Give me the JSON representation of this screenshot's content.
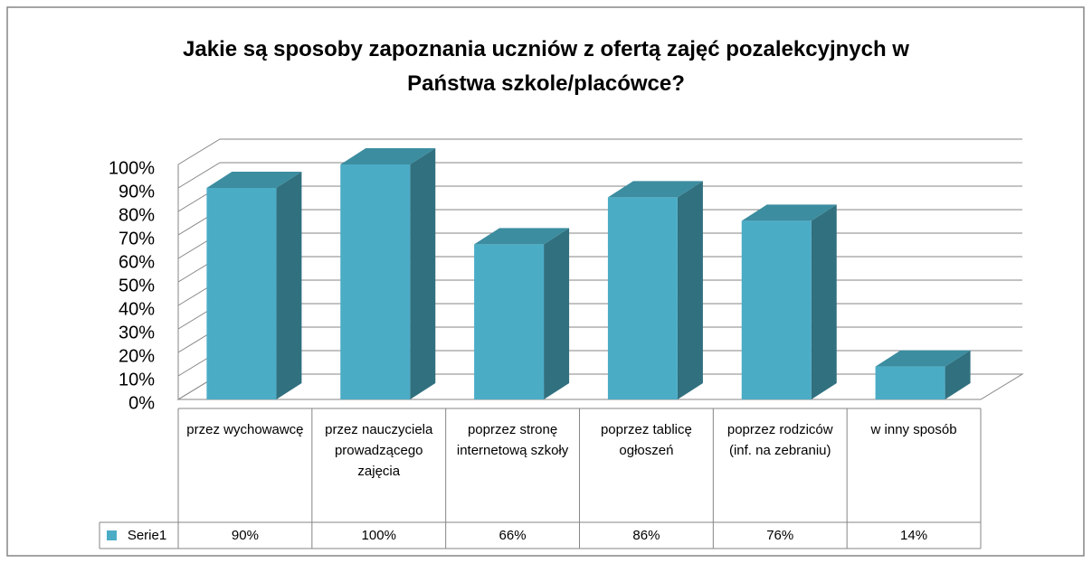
{
  "chart_data": {
    "type": "bar3d",
    "title": "Jakie są sposoby zapoznania uczniów z ofertą zajęć pozalekcyjnych w Państwa szkole/placówce?",
    "categories": [
      "przez wychowawcę",
      "przez nauczyciela prowadzącego zajęcia",
      "poprzez stronę internetową szkoły",
      "poprzez tablicę ogłoszeń",
      "poprzez rodziców (inf. na zebraniu)",
      "w inny sposób"
    ],
    "series": [
      {
        "name": "Serie1",
        "color": "#4bacc6",
        "values": [
          90,
          100,
          66,
          86,
          76,
          14
        ],
        "value_labels": [
          "90%",
          "100%",
          "66%",
          "86%",
          "76%",
          "14%"
        ]
      }
    ],
    "ylim": [
      0,
      100
    ],
    "yticks": [
      {
        "value": 0,
        "label": "0%"
      },
      {
        "value": 10,
        "label": "10%"
      },
      {
        "value": 20,
        "label": "20%"
      },
      {
        "value": 30,
        "label": "30%"
      },
      {
        "value": 40,
        "label": "40%"
      },
      {
        "value": 50,
        "label": "50%"
      },
      {
        "value": 60,
        "label": "60%"
      },
      {
        "value": 70,
        "label": "70%"
      },
      {
        "value": 80,
        "label": "80%"
      },
      {
        "value": 90,
        "label": "90%"
      },
      {
        "value": 100,
        "label": "100%"
      }
    ],
    "grid": true,
    "data_table": true
  }
}
